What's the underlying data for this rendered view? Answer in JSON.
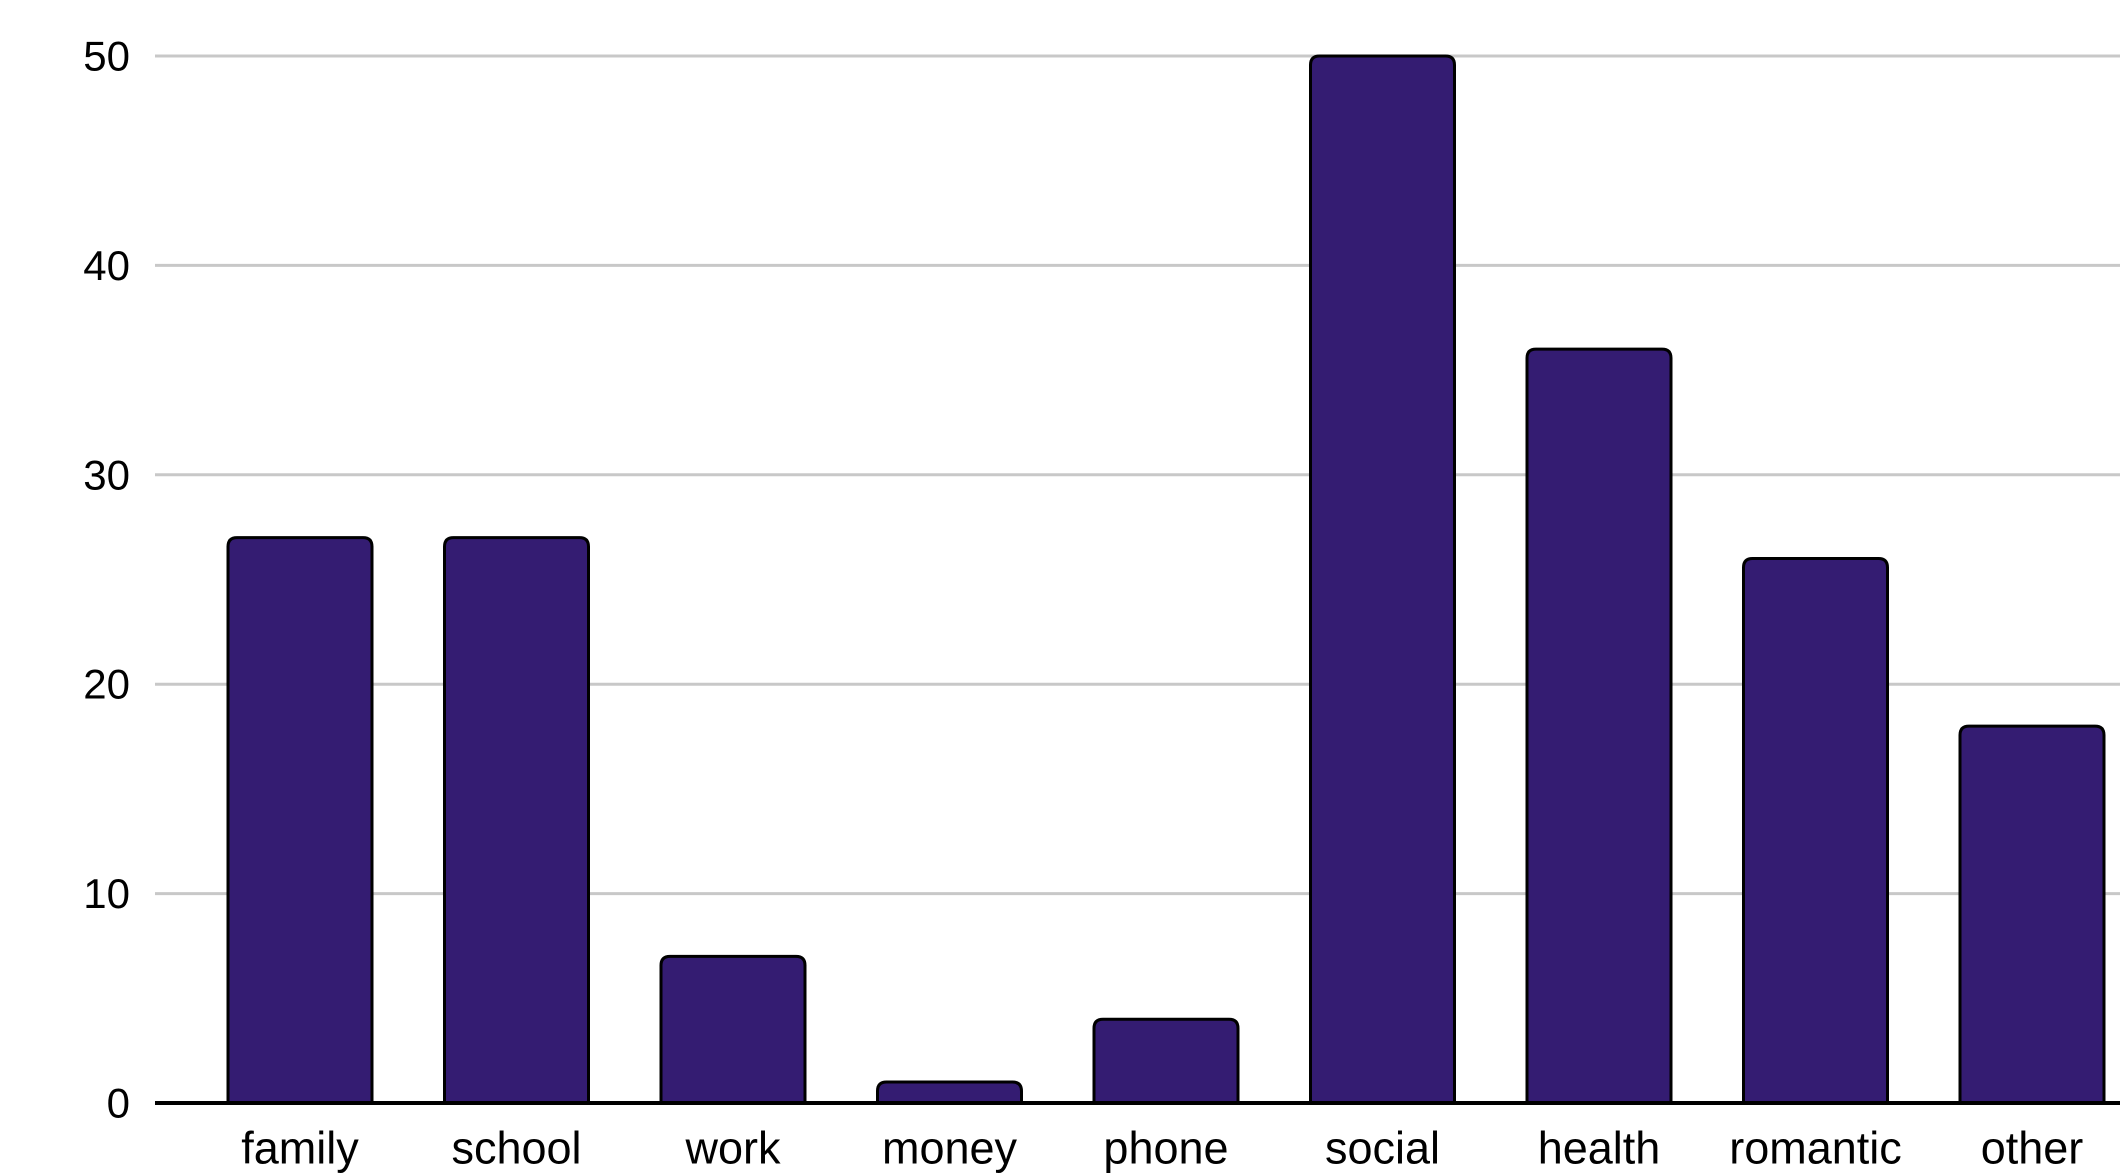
{
  "chart_data": {
    "type": "bar",
    "title": "",
    "xlabel": "",
    "ylabel": "",
    "categories": [
      "family",
      "school",
      "work",
      "money",
      "phone",
      "social",
      "health",
      "romantic",
      "other"
    ],
    "values": [
      27,
      27,
      7,
      1,
      4,
      50,
      36,
      26,
      18
    ],
    "ylim": [
      0,
      50
    ],
    "yticks": [
      "0",
      "10",
      "20",
      "30",
      "40",
      "50"
    ],
    "grid": true,
    "legend": "none",
    "colors": {
      "bar_fill": "#341c72",
      "bar_stroke": "#000000",
      "gridline": "#c8c8c8",
      "baseline": "#000000",
      "text": "#000000"
    }
  }
}
